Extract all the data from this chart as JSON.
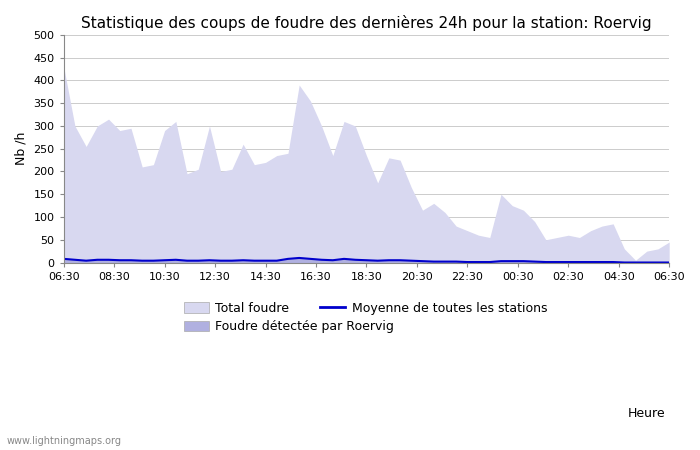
{
  "title": "Statistique des coups de foudre des dernières 24h pour la station: Roervig",
  "ylabel": "Nb /h",
  "xlabel": "Heure",
  "watermark": "www.lightningmaps.org",
  "ylim": [
    0,
    500
  ],
  "yticks": [
    0,
    50,
    100,
    150,
    200,
    250,
    300,
    350,
    400,
    450,
    500
  ],
  "xtick_labels": [
    "06:30",
    "08:30",
    "10:30",
    "12:30",
    "14:30",
    "16:30",
    "18:30",
    "20:30",
    "22:30",
    "00:30",
    "02:30",
    "04:30",
    "06:30"
  ],
  "legend_total": "Total foudre",
  "legend_moyenne": "Moyenne de toutes les stations",
  "legend_roervig": "Foudre détectée par Roervig",
  "fill_color_total": "#d8d8f0",
  "fill_color_roervig": "#b0b0e0",
  "line_color_moyenne": "#0000cc",
  "bg_color": "#ffffff",
  "grid_color": "#cccccc",
  "total_foudre": [
    430,
    300,
    255,
    300,
    315,
    290,
    295,
    210,
    215,
    290,
    310,
    195,
    205,
    300,
    200,
    205,
    260,
    215,
    220,
    235,
    240,
    390,
    355,
    300,
    235,
    310,
    300,
    235,
    175,
    230,
    225,
    165,
    115,
    130,
    110,
    80,
    70,
    60,
    55,
    150,
    125,
    115,
    90,
    50,
    55,
    60,
    55,
    70,
    80,
    85,
    30,
    5,
    25,
    30,
    45
  ],
  "roervig": [
    10,
    8,
    5,
    8,
    8,
    7,
    6,
    5,
    5,
    7,
    8,
    5,
    5,
    6,
    5,
    5,
    6,
    5,
    5,
    5,
    10,
    12,
    10,
    8,
    7,
    10,
    8,
    7,
    5,
    6,
    6,
    5,
    4,
    3,
    3,
    3,
    2,
    2,
    2,
    4,
    4,
    4,
    3,
    2,
    2,
    2,
    2,
    2,
    2,
    2,
    1,
    0,
    1,
    1,
    1
  ],
  "moyenne": [
    8,
    6,
    4,
    6,
    6,
    5,
    5,
    4,
    4,
    5,
    6,
    4,
    4,
    5,
    4,
    4,
    5,
    4,
    4,
    4,
    8,
    10,
    8,
    6,
    5,
    8,
    6,
    5,
    4,
    5,
    5,
    4,
    3,
    2,
    2,
    2,
    1,
    1,
    1,
    3,
    3,
    3,
    2,
    1,
    1,
    1,
    1,
    1,
    1,
    1,
    0,
    0,
    0,
    0,
    0
  ],
  "title_fontsize": 11,
  "label_fontsize": 9,
  "tick_fontsize": 8
}
